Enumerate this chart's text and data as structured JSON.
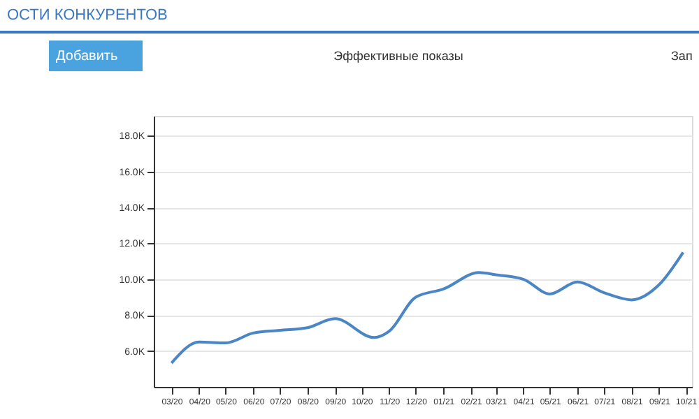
{
  "chart_data": {
    "type": "line",
    "annotations": [
      "ОСТИ КОНКУРЕНТОВ",
      "Добавить",
      "Эффективные показы",
      "Зап"
    ],
    "series": [
      {
        "color": "#4a86c5",
        "x": [
          "2020-03-01",
          "2020-04-01",
          "2020-05-01",
          "2020-06-01",
          "2020-07-01",
          "2020-08-01",
          "2020-09-01",
          "2020-10-15",
          "2020-11-01",
          "2020-12-01",
          "2021-01-01",
          "2021-02-10",
          "2021-03-01",
          "2021-04-01",
          "2021-05-01",
          "2021-06-01",
          "2021-07-01",
          "2021-08-01",
          "2021-09-01",
          "2021-09-28"
        ],
        "values": [
          5330,
          6500,
          6450,
          7000,
          7150,
          7300,
          7800,
          6750,
          7100,
          9000,
          9450,
          10370,
          10250,
          10000,
          9180,
          9850,
          9250,
          8850,
          9700,
          11500
        ]
      }
    ],
    "xlim": [
      "2020-02-10",
      "2021-10-08"
    ],
    "xticks": [
      {
        "value": "2020-03-01",
        "label": "03/20"
      },
      {
        "value": "2020-04-01",
        "label": "04/20"
      },
      {
        "value": "2020-05-01",
        "label": "05/20"
      },
      {
        "value": "2020-06-01",
        "label": "06/20"
      },
      {
        "value": "2020-07-01",
        "label": "07/20"
      },
      {
        "value": "2020-08-01",
        "label": "08/20"
      },
      {
        "value": "2020-09-01",
        "label": "09/20"
      },
      {
        "value": "2020-10-01",
        "label": "10/20"
      },
      {
        "value": "2020-11-01",
        "label": "11/20"
      },
      {
        "value": "2020-12-01",
        "label": "12/20"
      },
      {
        "value": "2021-01-01",
        "label": "01/21"
      },
      {
        "value": "2021-02-01",
        "label": "02/21"
      },
      {
        "value": "2021-03-01",
        "label": "03/21"
      },
      {
        "value": "2021-04-01",
        "label": "04/21"
      },
      {
        "value": "2021-05-01",
        "label": "05/21"
      },
      {
        "value": "2021-06-01",
        "label": "06/21"
      },
      {
        "value": "2021-07-01",
        "label": "07/21"
      },
      {
        "value": "2021-08-01",
        "label": "08/21"
      },
      {
        "value": "2021-09-01",
        "label": "09/21"
      },
      {
        "value": "2021-10-01",
        "label": "10/21"
      }
    ],
    "ylim": [
      4000,
      19100
    ],
    "yticks": [
      {
        "value": 6000,
        "label": "6.0K"
      },
      {
        "value": 8000,
        "label": "8.0K"
      },
      {
        "value": 10000,
        "label": "10.0K"
      },
      {
        "value": 12000,
        "label": "12.0K"
      },
      {
        "value": 14000,
        "label": "14.0K"
      },
      {
        "value": 16000,
        "label": "16.0K"
      },
      {
        "value": 18000,
        "label": "18.0K"
      }
    ],
    "grid": "y",
    "marker": "none",
    "line_style": "solid"
  }
}
